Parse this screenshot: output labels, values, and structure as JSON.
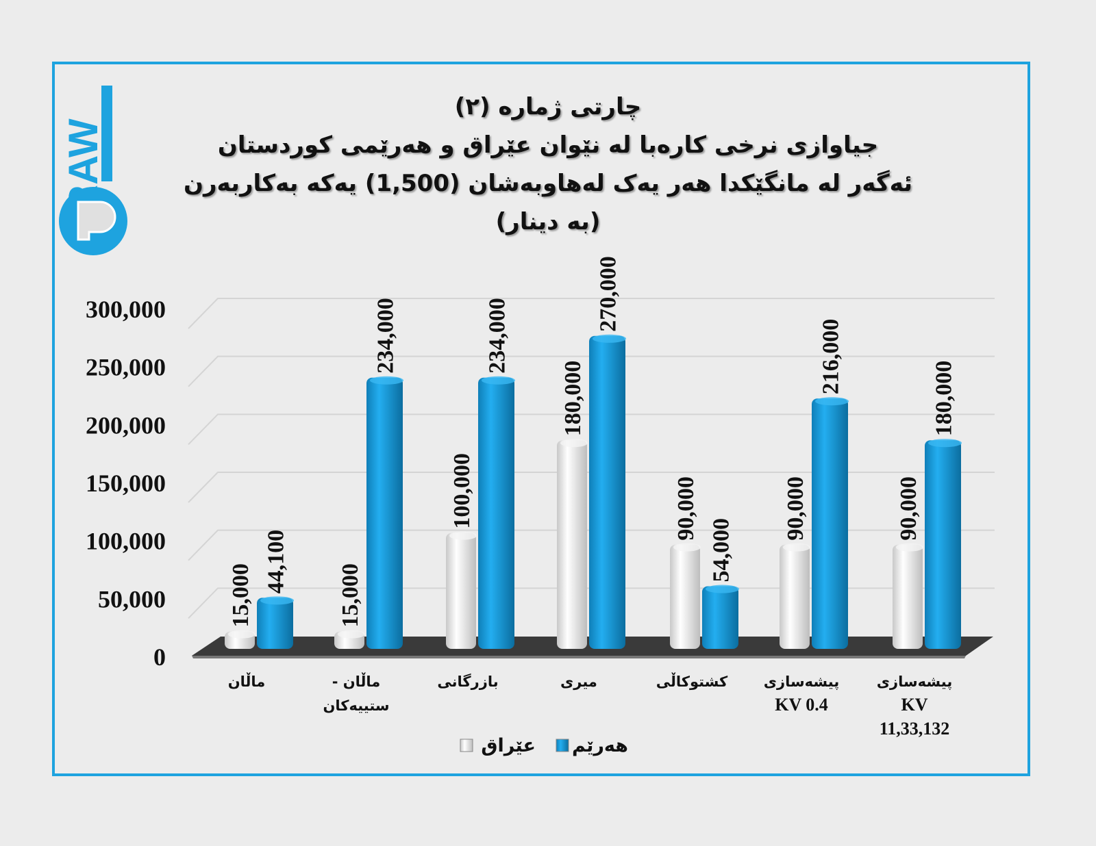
{
  "logo": {
    "text": "DRAW"
  },
  "colors": {
    "frame": "#1ea3df",
    "iraq": "#e8e8e8",
    "region": "#1b9ad6",
    "floor": "#3a3a3a",
    "grid": "#d4d4d4"
  },
  "chart_data": {
    "type": "bar",
    "title_lines": [
      "چارتی ژمارە (٢)",
      "جیاوازی نرخی کارەبا لە نێوان عێراق و هەرێمی کوردستان",
      "ئەگەر لە مانگێکدا هەر یەک لەهاوبەشان (1,500) یەکە بەکاربەرن",
      "(بە دینار)"
    ],
    "categories": [
      [
        "ماڵان"
      ],
      [
        "ماڵان -",
        "ستییەکان"
      ],
      [
        "بازرگانی"
      ],
      [
        "میری"
      ],
      [
        "کشتوکاڵی"
      ],
      [
        "پیشەسازی",
        "KV 0.4"
      ],
      [
        "پیشەسازی",
        "KV",
        "11,33,132"
      ]
    ],
    "series": [
      {
        "name": "عێراق",
        "values": [
          15000,
          15000,
          100000,
          180000,
          90000,
          90000,
          90000
        ],
        "labels": [
          "15,000",
          "15,000",
          "100,000",
          "180,000",
          "90,000",
          "90,000",
          "90,000"
        ]
      },
      {
        "name": "هەرێم",
        "values": [
          44100,
          234000,
          234000,
          270000,
          54000,
          216000,
          180000
        ],
        "labels": [
          "44,100",
          "234,000",
          "234,000",
          "270,000",
          "54,000",
          "216,000",
          "180,000"
        ]
      }
    ],
    "yticks": [
      "0",
      "50,000",
      "100,000",
      "150,000",
      "200,000",
      "250,000",
      "300,000"
    ],
    "ylim": [
      0,
      300000
    ],
    "grid": true,
    "legend_position": "bottom"
  }
}
